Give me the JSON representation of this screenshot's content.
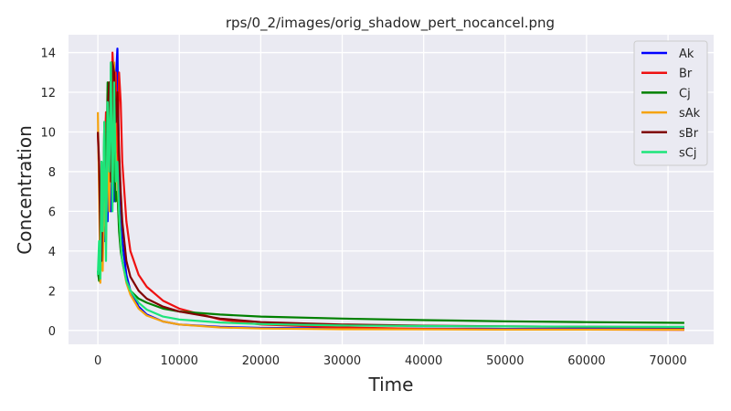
{
  "chart_data": {
    "type": "line",
    "title": "rps/0_2/images/orig_shadow_pert_nocancel.png",
    "xlabel": "Time",
    "ylabel": "Concentration",
    "xlim": [
      -3600,
      75600
    ],
    "ylim": [
      -0.7,
      14.9
    ],
    "xticks": [
      0,
      10000,
      20000,
      30000,
      40000,
      50000,
      60000,
      70000
    ],
    "yticks": [
      0,
      2,
      4,
      6,
      8,
      10,
      12,
      14
    ],
    "grid": true,
    "legend_position": "top-right",
    "background": "#eaeaf2",
    "series": [
      {
        "name": "Ak",
        "color": "#0000ff",
        "x": [
          0,
          150,
          300,
          450,
          600,
          800,
          1000,
          1200,
          1400,
          1600,
          1800,
          2000,
          2200,
          2400,
          2600,
          2800,
          3000,
          3500,
          4000,
          5000,
          6000,
          8000,
          10000,
          15000,
          20000,
          30000,
          40000,
          50000,
          60000,
          72000
        ],
        "y": [
          3.0,
          2.6,
          6.0,
          3.5,
          8.0,
          4.5,
          9.5,
          5.5,
          11.5,
          6.0,
          13.0,
          6.5,
          12.5,
          14.2,
          8.0,
          6.0,
          4.5,
          2.8,
          2.0,
          1.2,
          0.8,
          0.45,
          0.3,
          0.18,
          0.13,
          0.1,
          0.09,
          0.08,
          0.08,
          0.08
        ]
      },
      {
        "name": "Br",
        "color": "#ee1111",
        "x": [
          0,
          150,
          300,
          450,
          600,
          800,
          1000,
          1200,
          1400,
          1600,
          1800,
          2000,
          2200,
          2400,
          2600,
          2800,
          3000,
          3500,
          4000,
          5000,
          6000,
          8000,
          10000,
          15000,
          20000,
          30000,
          40000,
          50000,
          60000,
          72000
        ],
        "y": [
          10.0,
          8.0,
          4.0,
          6.5,
          3.5,
          8.5,
          11.0,
          7.5,
          12.5,
          8.0,
          14.0,
          12.5,
          13.0,
          8.0,
          13.0,
          11.5,
          8.5,
          5.5,
          4.0,
          2.8,
          2.2,
          1.5,
          1.1,
          0.55,
          0.3,
          0.15,
          0.08,
          0.05,
          0.04,
          0.03
        ]
      },
      {
        "name": "Cj",
        "color": "#008000",
        "x": [
          0,
          150,
          300,
          450,
          600,
          800,
          1000,
          1200,
          1400,
          1600,
          1800,
          2000,
          2200,
          2400,
          2600,
          2800,
          3000,
          3500,
          4000,
          5000,
          6000,
          8000,
          10000,
          15000,
          20000,
          30000,
          40000,
          50000,
          60000,
          72000
        ],
        "y": [
          3.0,
          2.5,
          5.0,
          8.5,
          4.0,
          10.5,
          7.0,
          12.5,
          6.5,
          13.5,
          7.0,
          9.0,
          6.5,
          7.0,
          5.0,
          4.0,
          3.5,
          2.5,
          2.0,
          1.6,
          1.4,
          1.1,
          0.95,
          0.8,
          0.7,
          0.6,
          0.52,
          0.46,
          0.42,
          0.38
        ]
      },
      {
        "name": "sAk",
        "color": "#f5a30f",
        "x": [
          0,
          150,
          300,
          450,
          600,
          800,
          1000,
          1200,
          1400,
          1600,
          1800,
          2000,
          2200,
          2400,
          2600,
          2800,
          3000,
          3500,
          4000,
          5000,
          6000,
          8000,
          10000,
          15000,
          20000,
          30000,
          40000,
          50000,
          60000,
          72000
        ],
        "y": [
          11.0,
          7.0,
          2.4,
          5.0,
          3.0,
          7.5,
          4.5,
          10.0,
          6.0,
          12.5,
          6.5,
          13.5,
          9.0,
          7.5,
          6.0,
          4.5,
          3.5,
          2.4,
          1.8,
          1.1,
          0.75,
          0.45,
          0.3,
          0.15,
          0.1,
          0.06,
          0.05,
          0.04,
          0.04,
          0.04
        ]
      },
      {
        "name": "sBr",
        "color": "#800000",
        "x": [
          0,
          150,
          300,
          450,
          600,
          800,
          1000,
          1200,
          1400,
          1600,
          1800,
          2000,
          2200,
          2400,
          2600,
          2800,
          3000,
          3500,
          4000,
          5000,
          6000,
          8000,
          10000,
          15000,
          20000,
          30000,
          40000,
          50000,
          60000,
          72000
        ],
        "y": [
          10.0,
          8.5,
          4.5,
          3.5,
          6.5,
          9.5,
          5.5,
          11.0,
          12.5,
          7.5,
          13.5,
          13.0,
          10.5,
          12.0,
          9.0,
          7.0,
          5.5,
          3.5,
          2.7,
          2.0,
          1.6,
          1.2,
          0.95,
          0.6,
          0.42,
          0.3,
          0.24,
          0.2,
          0.18,
          0.16
        ]
      },
      {
        "name": "sCj",
        "color": "#1de47a",
        "x": [
          0,
          150,
          300,
          450,
          600,
          800,
          1000,
          1200,
          1400,
          1600,
          1800,
          2000,
          2200,
          2400,
          2600,
          2800,
          3000,
          3500,
          4000,
          5000,
          6000,
          8000,
          10000,
          15000,
          20000,
          30000,
          40000,
          50000,
          60000,
          72000
        ],
        "y": [
          2.8,
          4.5,
          2.6,
          8.5,
          5.0,
          10.5,
          3.5,
          11.5,
          8.0,
          13.5,
          6.0,
          12.5,
          7.5,
          8.5,
          6.0,
          4.5,
          3.5,
          2.5,
          2.0,
          1.4,
          1.05,
          0.7,
          0.55,
          0.4,
          0.32,
          0.25,
          0.22,
          0.2,
          0.19,
          0.18
        ]
      }
    ]
  }
}
